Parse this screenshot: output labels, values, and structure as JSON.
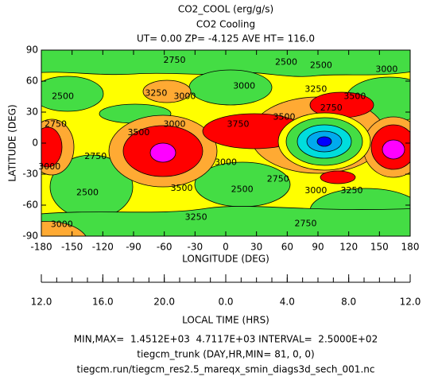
{
  "chart_data": {
    "type": "contour",
    "title": "CO2_COOL (erg/g/s)",
    "subtitle": "CO2 Cooling",
    "info": "UT= 0.00 ZP= -4.125 AVE HT= 116.0",
    "xlabel": "LONGITUDE (DEG)",
    "ylabel": "LATITUDE (DEG)",
    "xlim": [
      -180,
      180
    ],
    "xticks": [
      -180,
      -150,
      -120,
      -90,
      -60,
      -30,
      0,
      30,
      60,
      90,
      120,
      150,
      180
    ],
    "ylim": [
      -90,
      90
    ],
    "yticks": [
      -90,
      -60,
      -30,
      0,
      30,
      60,
      90
    ],
    "x2label": "LOCAL TIME (HRS)",
    "x2lim": [
      12,
      36
    ],
    "x2ticks": [
      {
        "value": 12,
        "label": "12.0"
      },
      {
        "value": 16,
        "label": "16.0"
      },
      {
        "value": 20,
        "label": "20.0"
      },
      {
        "value": 24,
        "label": "0.0"
      },
      {
        "value": 28,
        "label": "4.0"
      },
      {
        "value": 32,
        "label": "8.0"
      },
      {
        "value": 36,
        "label": "12.0"
      }
    ],
    "contour_labels": [
      {
        "value": 2750,
        "lon": -50,
        "lat": 80
      },
      {
        "value": 2500,
        "lon": 59,
        "lat": 78
      },
      {
        "value": 2500,
        "lon": 93,
        "lat": 75
      },
      {
        "value": 3000,
        "lon": 157,
        "lat": 71
      },
      {
        "value": 3000,
        "lon": -40,
        "lat": 45
      },
      {
        "value": 3250,
        "lon": -68,
        "lat": 48
      },
      {
        "value": 3000,
        "lon": 18,
        "lat": 55
      },
      {
        "value": 3250,
        "lon": 88,
        "lat": 52
      },
      {
        "value": 2500,
        "lon": -159,
        "lat": 45
      },
      {
        "value": 3500,
        "lon": 126,
        "lat": 45
      },
      {
        "value": 2750,
        "lon": 103,
        "lat": 34
      },
      {
        "value": 2750,
        "lon": -166,
        "lat": 18
      },
      {
        "value": 3000,
        "lon": -50,
        "lat": 18
      },
      {
        "value": 3750,
        "lon": 12,
        "lat": 18
      },
      {
        "value": 3500,
        "lon": 57,
        "lat": 25
      },
      {
        "value": 3500,
        "lon": -85,
        "lat": 10
      },
      {
        "value": 3000,
        "lon": -172,
        "lat": -23
      },
      {
        "value": 2750,
        "lon": -127,
        "lat": -13
      },
      {
        "value": 3000,
        "lon": 0,
        "lat": -19
      },
      {
        "value": 2750,
        "lon": 51,
        "lat": -35
      },
      {
        "value": 3500,
        "lon": -43,
        "lat": -44
      },
      {
        "value": 2500,
        "lon": -135,
        "lat": -48
      },
      {
        "value": 2500,
        "lon": 16,
        "lat": -45
      },
      {
        "value": 3000,
        "lon": 88,
        "lat": -46
      },
      {
        "value": 3250,
        "lon": 123,
        "lat": -46
      },
      {
        "value": 3250,
        "lon": -29,
        "lat": -72
      },
      {
        "value": 2750,
        "lon": 78,
        "lat": -78
      },
      {
        "value": 3000,
        "lon": -160,
        "lat": -79
      }
    ],
    "footer": [
      "MIN,MAX=  1.4512E+03  4.7117E+03 INTERVAL=  2.5000E+02",
      "tiegcm_trunk (DAY,HR,MIN= 81, 0, 0)",
      "tiegcm.run/tiegcm_res2.5_mareqx_smin_diags3d_sech_001.nc"
    ]
  }
}
